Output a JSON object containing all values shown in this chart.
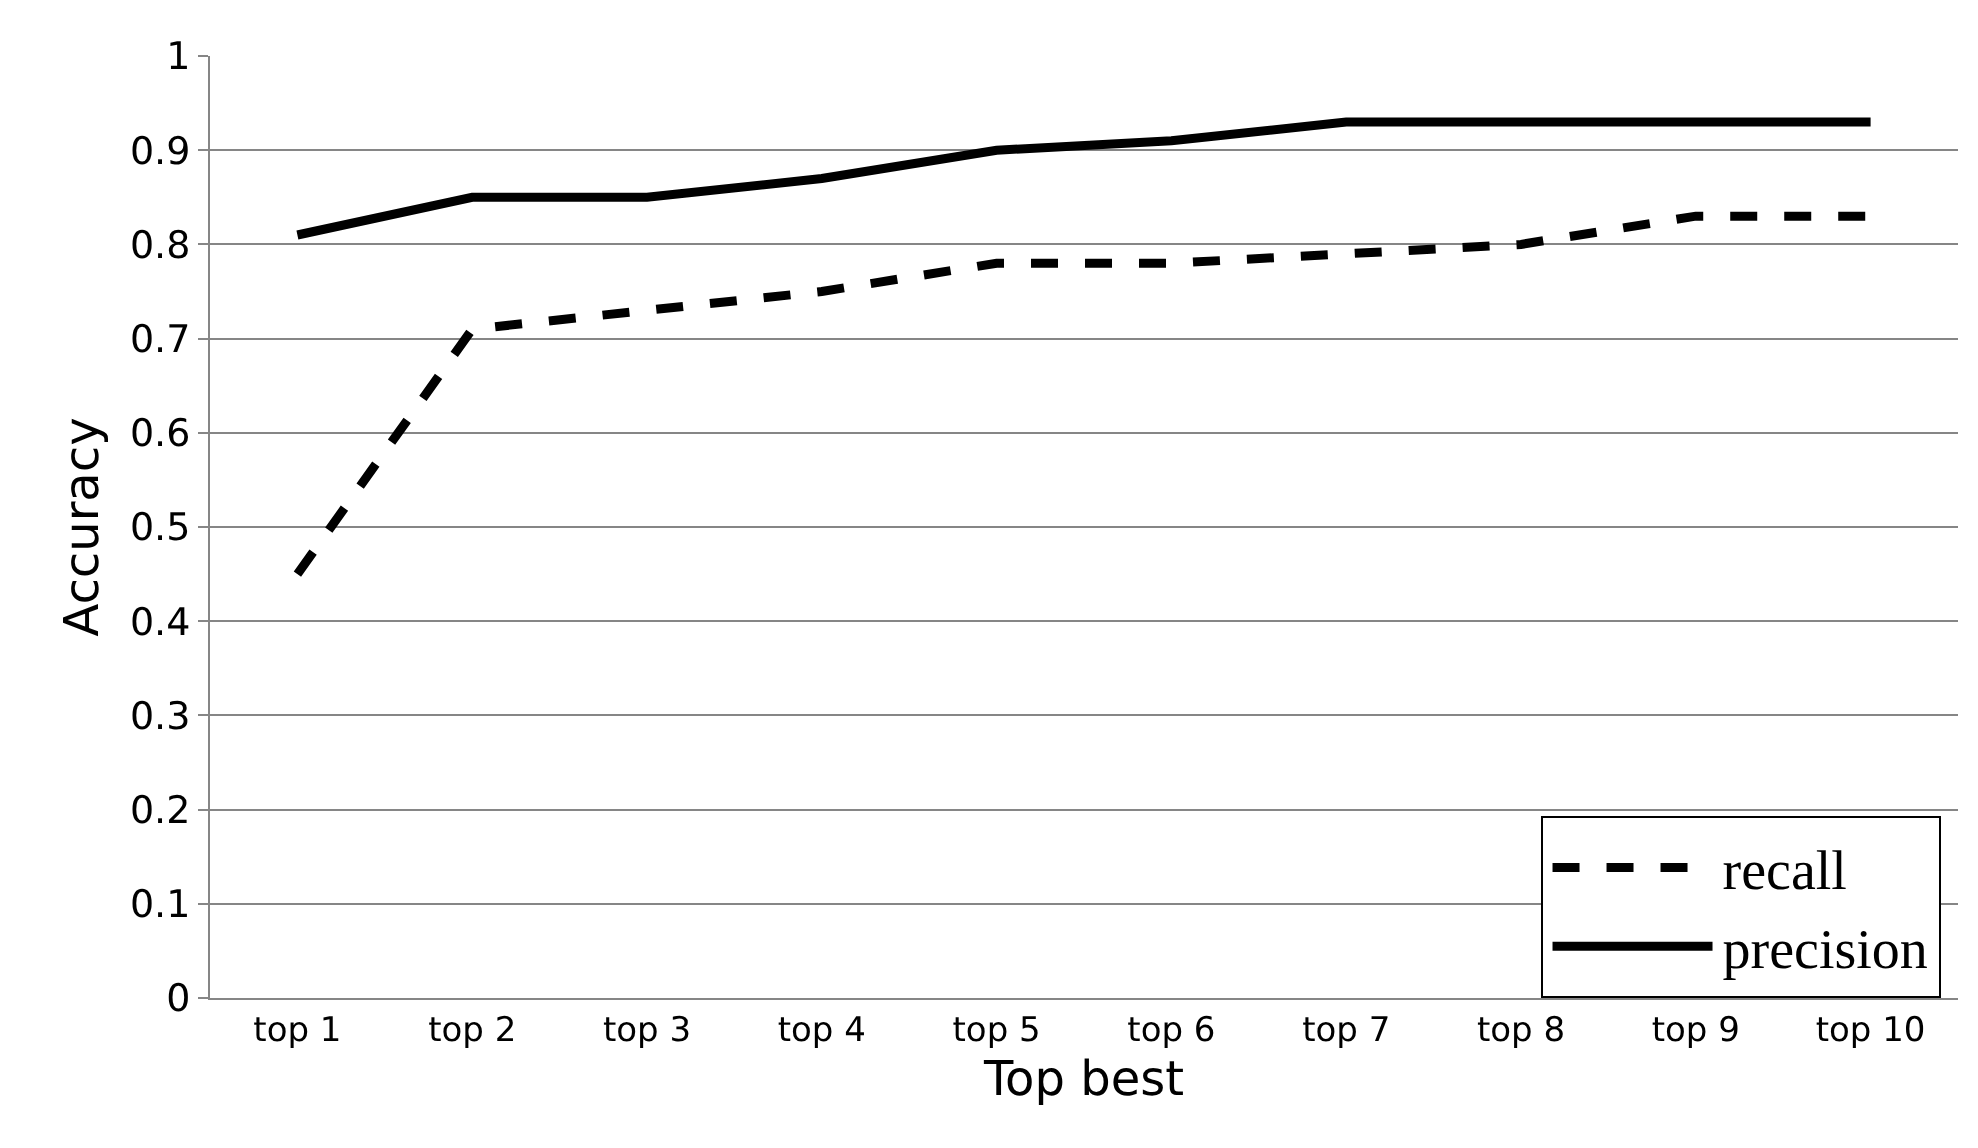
{
  "chart_data": {
    "type": "line",
    "xlabel": "Top best",
    "ylabel": "Accuracy",
    "categories": [
      "top 1",
      "top 2",
      "top 3",
      "top 4",
      "top 5",
      "top 6",
      "top 7",
      "top 8",
      "top 9",
      "top 10"
    ],
    "series": [
      {
        "name": "recall",
        "color": "#000000",
        "line_style": "dashed",
        "values": [
          0.45,
          0.71,
          0.73,
          0.75,
          0.78,
          0.78,
          0.79,
          0.8,
          0.83,
          0.83
        ]
      },
      {
        "name": "precision",
        "color": "#000000",
        "line_style": "solid",
        "values": [
          0.81,
          0.85,
          0.85,
          0.87,
          0.9,
          0.91,
          0.93,
          0.93,
          0.93,
          0.93
        ]
      }
    ],
    "ylim": [
      0,
      1
    ],
    "yticks": [
      0,
      0.1,
      0.2,
      0.3,
      0.4,
      0.5,
      0.6,
      0.7,
      0.8,
      0.9,
      1
    ],
    "grid": "y",
    "legend": "bottom right",
    "marker": "none"
  }
}
